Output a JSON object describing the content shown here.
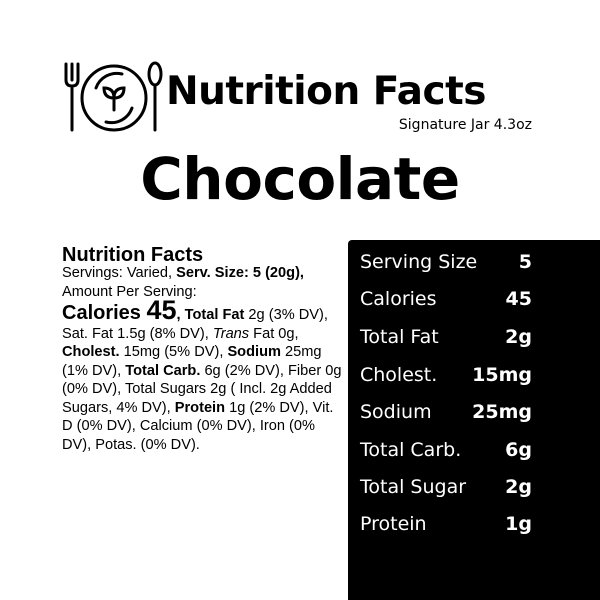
{
  "header": {
    "title": "Nutrition Facts",
    "subtitle": "Signature Jar 4.3oz",
    "logo_icon": "plate-fork-spoon-sprout-icon"
  },
  "product": "Chocolate",
  "label": {
    "heading": "Nutrition Facts",
    "t1": "Servings: Varied, ",
    "b1": "Serv. Size: 5 (20g),",
    "t2": " Amount Per Serving:",
    "cal_label": "Calories ",
    "cal_value": "45",
    "b2": ", Total Fat",
    "t3": " 2g (3% DV), Sat. Fat 1.5g (8% DV), ",
    "i1": "Trans",
    "t4": " Fat 0g, ",
    "b3": "Cholest.",
    "t5": " 15mg (5% DV), ",
    "b4": "Sodium",
    "t6": " 25mg (1% DV), ",
    "b5": "Total Carb.",
    "t7": " 6g (2% DV), Fiber 0g (0% DV), Total Sugars 2g ( Incl. 2g  Added Sugars, 4% DV), ",
    "b6": "Protein",
    "t8": " 1g (2% DV), Vit. D (0% DV), Calcium (0% DV), Iron (0% DV), Potas. (0% DV)."
  },
  "panel": {
    "rows": [
      {
        "label": "Serving Size",
        "value": "5"
      },
      {
        "label": "Calories",
        "value": "45"
      },
      {
        "label": "Total Fat",
        "value": "2g"
      },
      {
        "label": "Cholest.",
        "value": "15mg"
      },
      {
        "label": "Sodium",
        "value": "25mg"
      },
      {
        "label": "Total Carb.",
        "value": "6g"
      },
      {
        "label": "Total Sugar",
        "value": "2g"
      },
      {
        "label": "Protein",
        "value": "1g"
      }
    ]
  }
}
